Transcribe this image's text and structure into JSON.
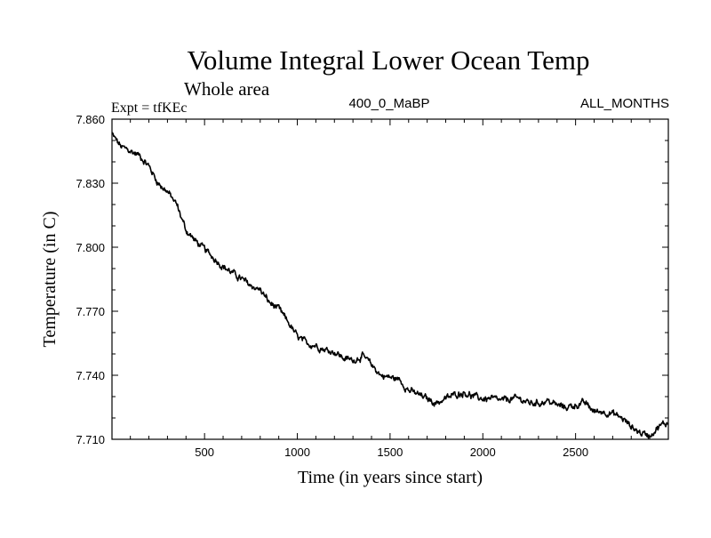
{
  "chart_data": {
    "type": "line",
    "title": "Volume Integral Lower Ocean Temp",
    "subtitle": "Whole area",
    "annotations": {
      "left": "Expt = tfKEc",
      "center": "400_0_MaBP",
      "right": "ALL_MONTHS"
    },
    "xlabel": "Time (in years since start)",
    "ylabel": "Temperature (in C)",
    "xlim": [
      1,
      3000
    ],
    "ylim": [
      7.71,
      7.86
    ],
    "x_ticks": [
      500,
      1000,
      1500,
      2000,
      2500
    ],
    "y_ticks": [
      7.71,
      7.74,
      7.77,
      7.8,
      7.83,
      7.86
    ],
    "y_tick_labels": [
      "7.710",
      "7.740",
      "7.770",
      "7.800",
      "7.830",
      "7.860"
    ],
    "grid": false,
    "line_color": "#000000",
    "series": [
      {
        "x": [
          1,
          25,
          50,
          100,
          150,
          200,
          250,
          300,
          350,
          400,
          450,
          500,
          550,
          600,
          650,
          700,
          750,
          800,
          850,
          900,
          950,
          1000,
          1050,
          1100,
          1150,
          1200,
          1250,
          1300,
          1350,
          1400,
          1450,
          1500,
          1550,
          1600,
          1650,
          1700,
          1750,
          1800,
          1850,
          1900,
          1950,
          2000,
          2050,
          2100,
          2150,
          2200,
          2250,
          2300,
          2350,
          2400,
          2450,
          2500,
          2550,
          2600,
          2650,
          2700,
          2750,
          2800,
          2850,
          2900,
          2950,
          3000
        ],
        "values": [
          7.853,
          7.85,
          7.847,
          7.845,
          7.843,
          7.838,
          7.83,
          7.826,
          7.82,
          7.808,
          7.803,
          7.799,
          7.795,
          7.791,
          7.788,
          7.785,
          7.782,
          7.78,
          7.774,
          7.771,
          7.765,
          7.758,
          7.755,
          7.754,
          7.752,
          7.751,
          7.748,
          7.747,
          7.749,
          7.745,
          7.74,
          7.739,
          7.738,
          7.733,
          7.731,
          7.729,
          7.727,
          7.729,
          7.731,
          7.732,
          7.73,
          7.729,
          7.729,
          7.728,
          7.729,
          7.729,
          7.727,
          7.727,
          7.728,
          7.726,
          7.725,
          7.726,
          7.727,
          7.723,
          7.723,
          7.722,
          7.72,
          7.716,
          7.713,
          7.712,
          7.716,
          7.718
        ]
      }
    ]
  }
}
